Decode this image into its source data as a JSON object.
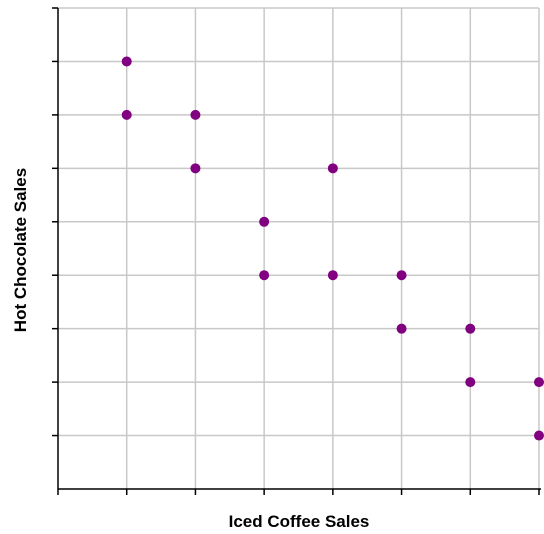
{
  "chart_data": {
    "type": "scatter",
    "xlabel": "Iced Coffee Sales",
    "ylabel": "Hot Chocolate Sales",
    "xlim": [
      0,
      7
    ],
    "ylim": [
      0,
      9
    ],
    "grid": true,
    "legend": "none",
    "marker_color": "#800080",
    "points": [
      {
        "x": 1,
        "y": 8
      },
      {
        "x": 1,
        "y": 7
      },
      {
        "x": 2,
        "y": 7
      },
      {
        "x": 2,
        "y": 6
      },
      {
        "x": 3,
        "y": 5
      },
      {
        "x": 3,
        "y": 4
      },
      {
        "x": 4,
        "y": 6
      },
      {
        "x": 4,
        "y": 4
      },
      {
        "x": 5,
        "y": 4
      },
      {
        "x": 5,
        "y": 3
      },
      {
        "x": 6,
        "y": 3
      },
      {
        "x": 6,
        "y": 2
      },
      {
        "x": 7,
        "y": 2
      },
      {
        "x": 7,
        "y": 1
      }
    ]
  }
}
